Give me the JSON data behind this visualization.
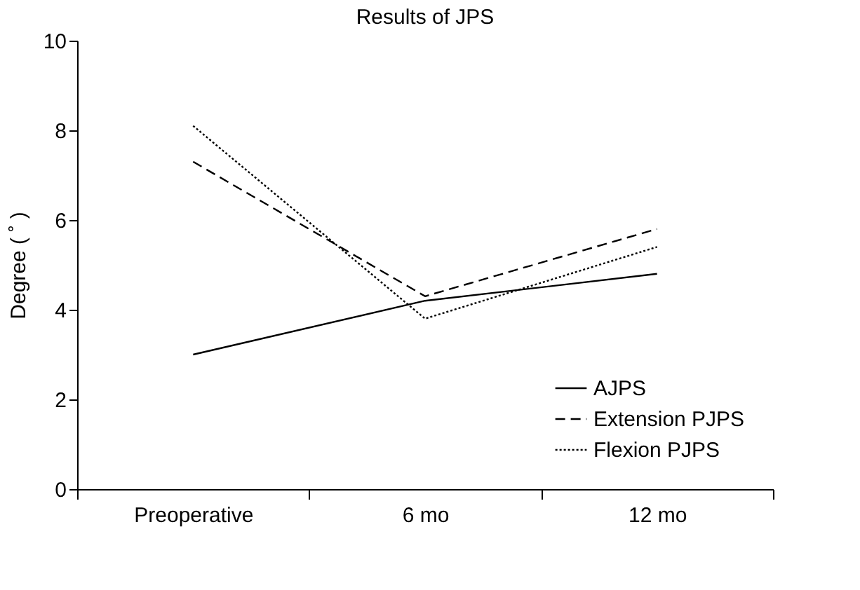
{
  "chart_data": {
    "type": "line",
    "title": "Results of JPS",
    "ylabel": "Degree ( ˚ )",
    "categories": [
      "Preoperative",
      "6 mo",
      "12 mo"
    ],
    "series": [
      {
        "name": "AJPS",
        "color": "#000000",
        "line_style": "solid",
        "values": [
          3.0,
          4.2,
          4.8
        ]
      },
      {
        "name": "Extension PJPS",
        "color": "#000000",
        "line_style": "dashed",
        "values": [
          7.3,
          4.3,
          5.8
        ]
      },
      {
        "name": "Flexion PJPS",
        "color": "#000000",
        "line_style": "dotted",
        "values": [
          8.1,
          3.8,
          5.4
        ]
      }
    ],
    "ylim": [
      0,
      10
    ],
    "yticks": [
      0,
      2,
      4,
      6,
      8,
      10
    ],
    "legend": "bottom right",
    "marker": "none"
  }
}
